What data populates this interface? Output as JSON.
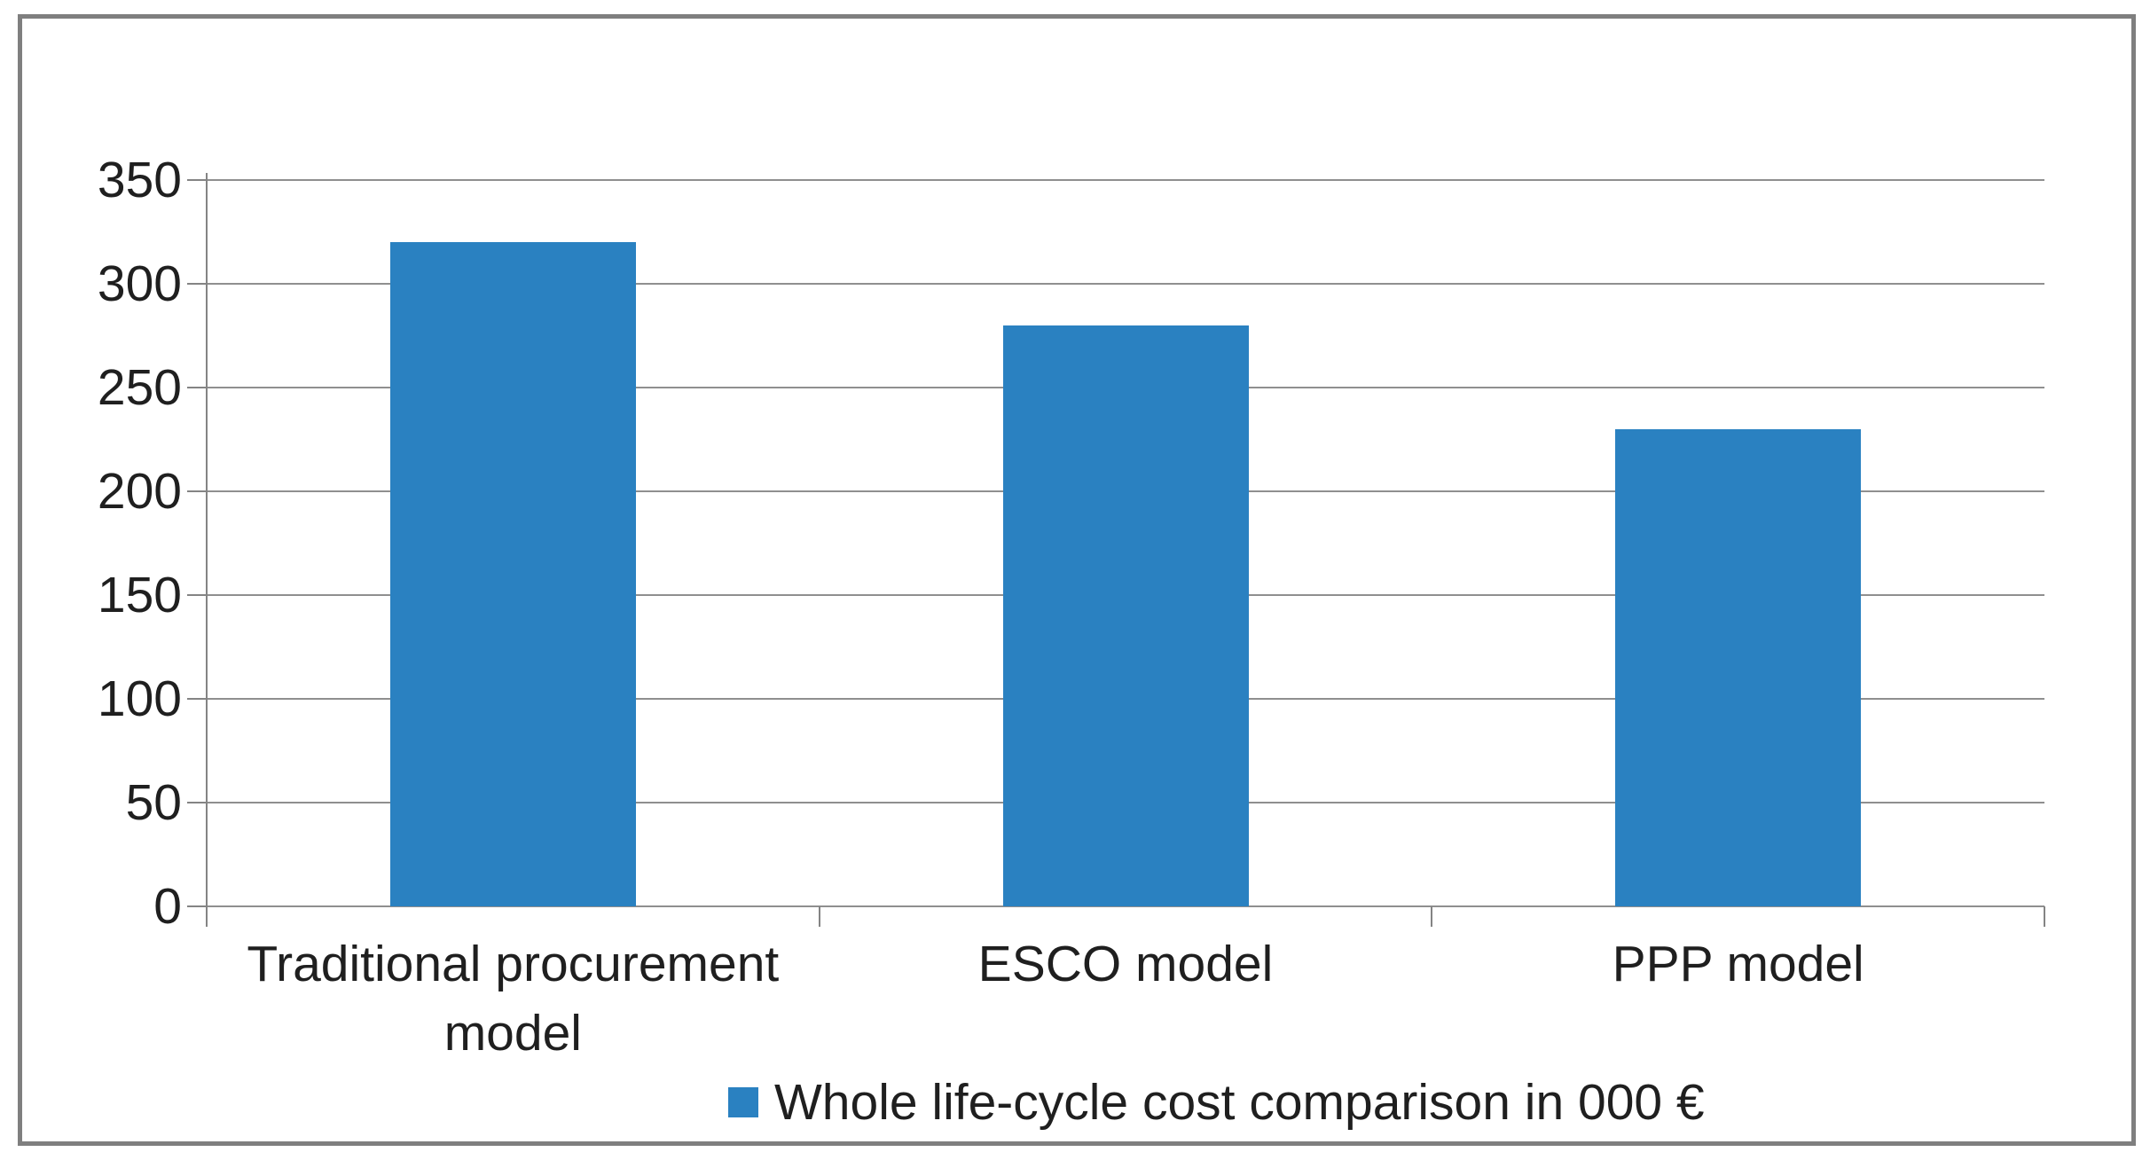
{
  "chart_data": {
    "type": "bar",
    "title": "",
    "categories": [
      "Traditional procurement model",
      "ESCO model",
      "PPP model"
    ],
    "values": [
      320,
      280,
      230
    ],
    "series": [
      {
        "name": "Whole life-cycle cost comparison in 000 €",
        "values": [
          320,
          280,
          230
        ]
      }
    ],
    "legend": "Whole life-cycle cost comparison in 000 €",
    "legend_position": "bottom",
    "legend_marker": "square-icon",
    "xlabel": "",
    "ylabel": "",
    "ylim": [
      0,
      350
    ],
    "yticks": [
      0,
      50,
      100,
      150,
      200,
      250,
      300,
      350
    ],
    "grid": true,
    "colors": {
      "bar": "#2a81c1",
      "gridline": "#8f8f8f",
      "axis": "#848484",
      "text": "#1f1f1f",
      "frame_border": "#7f7f7f",
      "background": "#ffffff"
    }
  }
}
